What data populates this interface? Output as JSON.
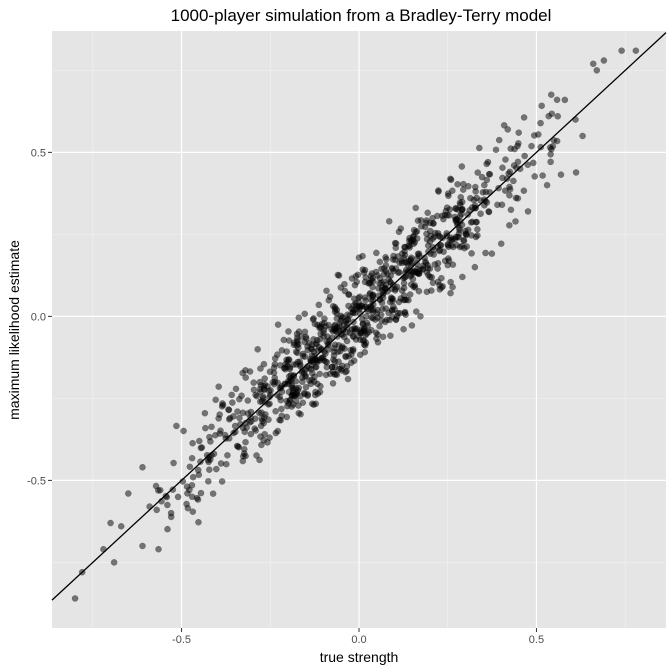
{
  "chart_data": {
    "type": "scatter",
    "title": "1000-player simulation from a Bradley-Terry model",
    "xlabel": "true strength",
    "ylabel": "maximum likelihood estimate",
    "xlim": [
      -0.865,
      0.865
    ],
    "ylim": [
      -0.95,
      0.87
    ],
    "x_ticks": [
      -0.5,
      0.0,
      0.5
    ],
    "y_ticks": [
      -0.5,
      0.0,
      0.5
    ],
    "x_tick_labels": [
      "-0.5",
      "0.0",
      "0.5"
    ],
    "y_tick_labels": [
      "-0.5",
      "0.0",
      "0.5"
    ],
    "grid": true,
    "panel_background": "#e5e5e5",
    "point_color": "#000000",
    "point_opacity": 0.5,
    "n_points": 1000,
    "reference_line": {
      "intercept": 0,
      "slope": 1,
      "color": "#000000"
    },
    "highlighted_points": [
      {
        "x": -0.8,
        "y": -0.86
      },
      {
        "x": -0.78,
        "y": -0.78
      },
      {
        "x": -0.72,
        "y": -0.71
      },
      {
        "x": -0.69,
        "y": -0.75
      },
      {
        "x": -0.7,
        "y": -0.63
      },
      {
        "x": -0.67,
        "y": -0.64
      },
      {
        "x": -0.65,
        "y": -0.54
      },
      {
        "x": -0.61,
        "y": -0.7
      },
      {
        "x": -0.61,
        "y": -0.46
      },
      {
        "x": -0.57,
        "y": -0.59
      },
      {
        "x": -0.56,
        "y": -0.53
      },
      {
        "x": -0.47,
        "y": -0.55
      },
      {
        "x": -0.45,
        "y": -0.38
      },
      {
        "x": -0.27,
        "y": -0.25
      },
      {
        "x": -0.1,
        "y": -0.05
      },
      {
        "x": 0.02,
        "y": 0.03
      },
      {
        "x": 0.2,
        "y": 0.12
      },
      {
        "x": 0.3,
        "y": 0.26
      },
      {
        "x": 0.39,
        "y": 0.34
      },
      {
        "x": 0.45,
        "y": 0.56
      },
      {
        "x": 0.53,
        "y": 0.4
      },
      {
        "x": 0.56,
        "y": 0.61
      },
      {
        "x": 0.58,
        "y": 0.66
      },
      {
        "x": 0.61,
        "y": 0.6
      },
      {
        "x": 0.63,
        "y": 0.55
      },
      {
        "x": 0.66,
        "y": 0.77
      },
      {
        "x": 0.67,
        "y": 0.75
      },
      {
        "x": 0.69,
        "y": 0.78
      },
      {
        "x": 0.74,
        "y": 0.81
      },
      {
        "x": 0.78,
        "y": 0.81
      }
    ],
    "distribution": {
      "x_mean": 0.0,
      "x_sd": 0.26,
      "residual_sd": 0.075,
      "seed": 1000
    }
  }
}
